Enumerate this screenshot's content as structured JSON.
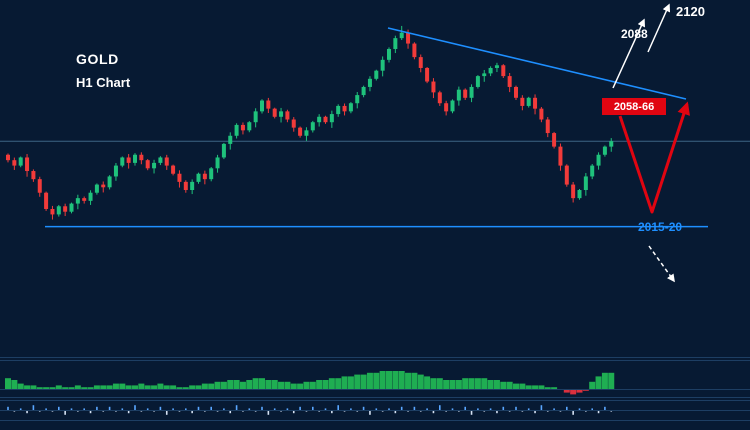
{
  "header": {
    "symbol": "GOLD",
    "timeframe": "H1 Chart"
  },
  "annotations": {
    "target_upper": "2120",
    "target_mid": "2088",
    "resistance_zone": "2058-66",
    "support_zone": "2015-20"
  },
  "colors": {
    "background": "#071a33",
    "bull": "#1fc27c",
    "bear": "#f23b3a",
    "trendline": "#1e8fff",
    "support": "#1e8fff",
    "price_line": "#3d6585",
    "separator": "#1d3e63",
    "macd_pos": "#1fae52",
    "macd_neg": "#d9303e",
    "ind2_pos": "#5aa7ff",
    "ind2_neg": "#d7e3f4",
    "arrow_white": "#ffffff",
    "arrow_red": "#e00511",
    "badge_bg": "#e00511",
    "badge_text": "#ffffff"
  },
  "chart_data": {
    "type": "candlestick",
    "title": "GOLD H1 Chart",
    "x_axis": "time (H1 bars)",
    "y_axis": "price (USD)",
    "price_levels": {
      "resistance_zone": [
        2058,
        2066
      ],
      "support_zone": [
        2015,
        2020
      ],
      "targets": [
        2088,
        2120
      ]
    },
    "trendline": {
      "type": "descending-resistance",
      "from_price": 2091,
      "to_price": 2065
    },
    "first_open": 2044,
    "closes": [
      2042,
      2040,
      2043,
      2038,
      2035,
      2030,
      2024,
      2022,
      2025,
      2023,
      2026,
      2028,
      2027,
      2030,
      2033,
      2032,
      2036,
      2040,
      2043,
      2041,
      2044,
      2042,
      2039,
      2041,
      2043,
      2040,
      2037,
      2034,
      2031,
      2034,
      2037,
      2035,
      2039,
      2043,
      2048,
      2051,
      2055,
      2053,
      2056,
      2060,
      2064,
      2061,
      2058,
      2060,
      2057,
      2054,
      2051,
      2053,
      2056,
      2058,
      2056,
      2059,
      2062,
      2060,
      2063,
      2066,
      2069,
      2072,
      2075,
      2079,
      2083,
      2087,
      2089,
      2085,
      2080,
      2076,
      2071,
      2067,
      2063,
      2060,
      2064,
      2068,
      2065,
      2069,
      2073,
      2074,
      2076,
      2077,
      2073,
      2069,
      2065,
      2062,
      2065,
      2061,
      2057,
      2052,
      2047,
      2040,
      2033,
      2028,
      2031,
      2036,
      2040,
      2044,
      2047,
      2049
    ],
    "wick_pattern": [
      0.8,
      1.6,
      0.6,
      2.1,
      1.0,
      1.5,
      0.7,
      1.9
    ],
    "high_overrides": {
      "62": 2091.5
    },
    "macd_histogram": [
      6,
      5,
      3,
      2,
      2,
      1,
      1,
      1,
      2,
      1,
      1,
      2,
      1,
      1,
      2,
      2,
      2,
      3,
      3,
      2,
      2,
      3,
      2,
      2,
      3,
      2,
      2,
      1,
      1,
      2,
      2,
      3,
      3,
      4,
      4,
      5,
      5,
      4,
      5,
      6,
      6,
      5,
      5,
      4,
      4,
      3,
      3,
      4,
      4,
      5,
      5,
      6,
      6,
      7,
      7,
      8,
      8,
      9,
      9,
      10,
      10,
      10,
      10,
      9,
      9,
      8,
      7,
      6,
      6,
      5,
      5,
      5,
      6,
      6,
      6,
      6,
      5,
      5,
      4,
      4,
      3,
      3,
      2,
      2,
      2,
      1,
      1,
      0,
      -2,
      -3,
      -2,
      -1,
      4,
      7,
      9,
      9
    ],
    "signal_pattern": [
      2,
      -1,
      1,
      -2,
      3,
      -1,
      1,
      -1,
      2,
      -3,
      1,
      -1,
      1,
      -2,
      2,
      -1
    ]
  }
}
